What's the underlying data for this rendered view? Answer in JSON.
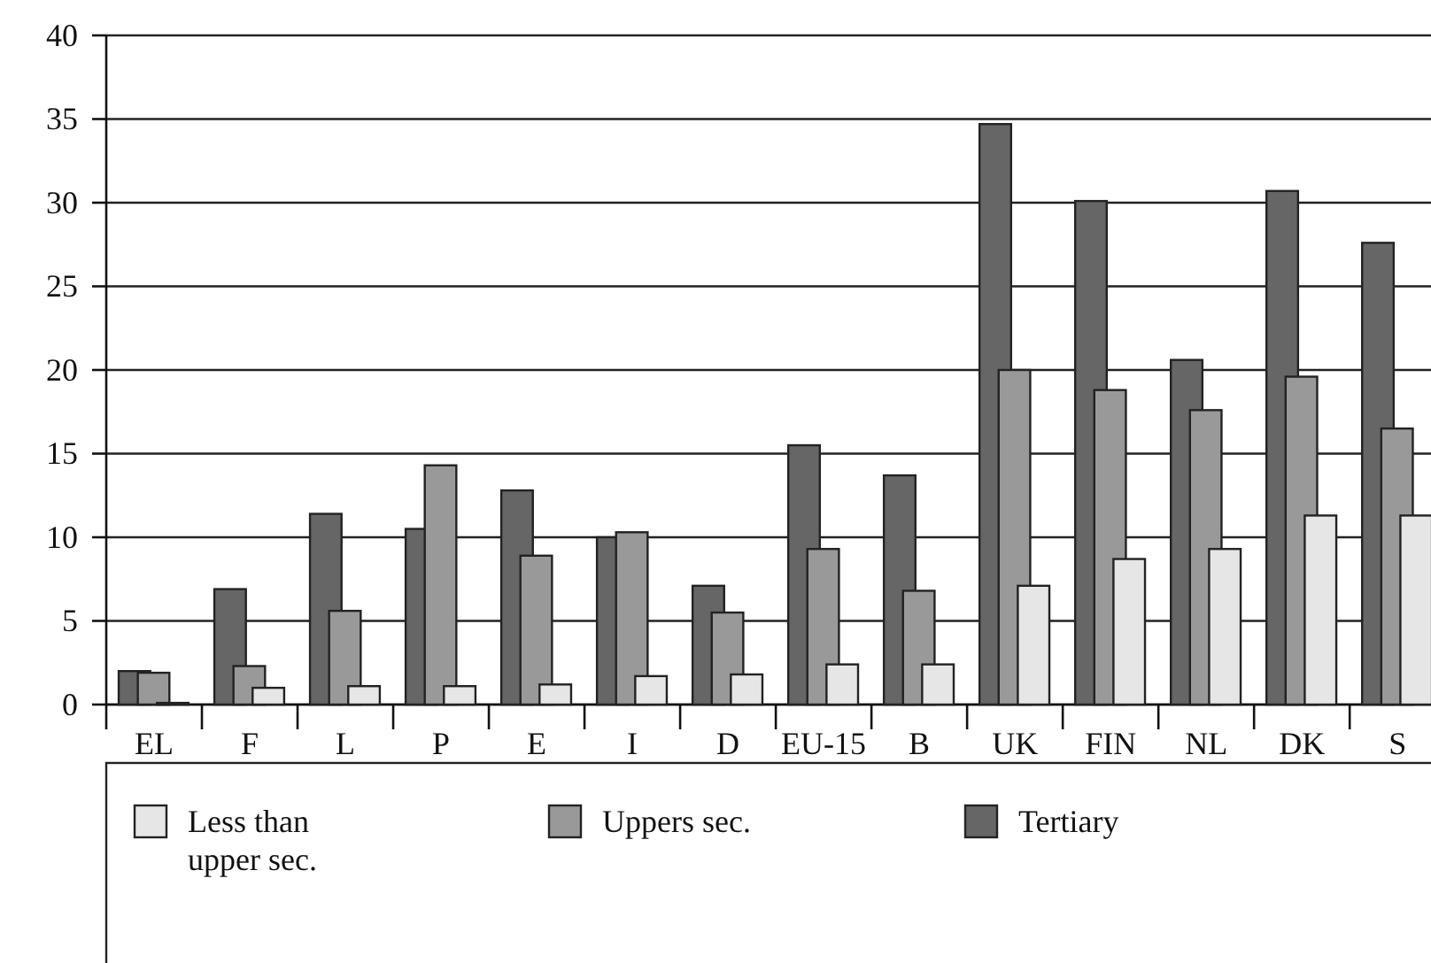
{
  "chart_data": {
    "type": "bar",
    "categories": [
      "EL",
      "F",
      "L",
      "P",
      "E",
      "I",
      "D",
      "EU-15",
      "B",
      "UK",
      "FIN",
      "NL",
      "DK",
      "S"
    ],
    "series": [
      {
        "name": "Less than upper sec.",
        "color": "#e6e6e6",
        "values": [
          0.1,
          1.0,
          1.1,
          1.1,
          1.2,
          1.7,
          1.8,
          2.4,
          2.4,
          7.1,
          8.7,
          9.3,
          11.3,
          11.3
        ]
      },
      {
        "name": "Uppers sec.",
        "color": "#999999",
        "values": [
          1.9,
          2.3,
          5.6,
          14.3,
          8.9,
          10.3,
          5.5,
          9.3,
          6.8,
          20.0,
          18.8,
          17.6,
          19.6,
          16.5
        ]
      },
      {
        "name": "Tertiary",
        "color": "#666666",
        "values": [
          2.0,
          6.9,
          11.4,
          10.5,
          12.8,
          10.0,
          7.1,
          15.5,
          13.7,
          34.7,
          30.1,
          20.6,
          30.7,
          27.6
        ]
      }
    ],
    "ylim": [
      0,
      40
    ],
    "yticks": [
      0,
      5,
      10,
      15,
      20,
      25,
      30,
      35,
      40
    ],
    "grid": "y",
    "legend": "bottom"
  }
}
